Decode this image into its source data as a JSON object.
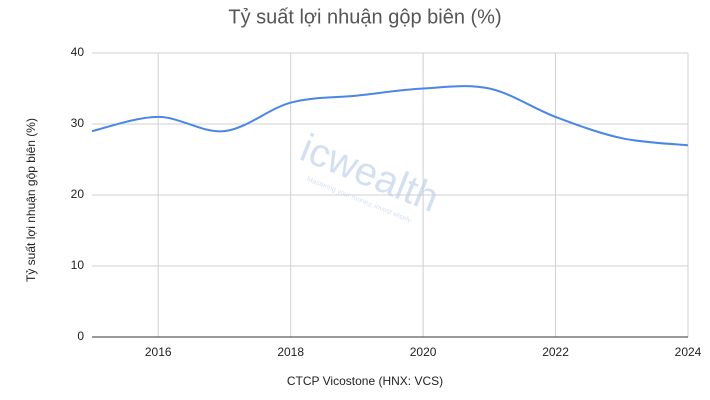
{
  "chart_data": {
    "type": "line",
    "title": "Tỷ suất lợi nhuận gộp biên (%)",
    "x_label": "CTCP Vicostone (HNX: VCS)",
    "y_label": "Tỷ suất lợi nhuận gộp biên (%)",
    "x": [
      2015,
      2016,
      2017,
      2018,
      2019,
      2020,
      2021,
      2022,
      2023,
      2024
    ],
    "series": [
      {
        "name": "Tỷ suất lợi nhuận gộp biên (%)",
        "color": "#4a86e8",
        "values": [
          29,
          31,
          29,
          33,
          34,
          35,
          35,
          31,
          28,
          27
        ]
      }
    ],
    "xlim": [
      2015,
      2024
    ],
    "xticks": [
      2016,
      2018,
      2020,
      2022,
      2024
    ],
    "ylim": [
      0,
      40
    ],
    "yticks": [
      0,
      10,
      20,
      30,
      40
    ],
    "grid": true,
    "watermark": {
      "text": "icwealth",
      "tagline": "Mastering your money, invest wisely"
    }
  }
}
